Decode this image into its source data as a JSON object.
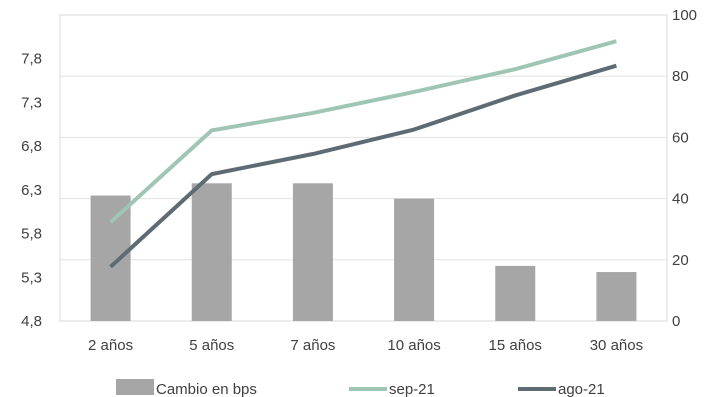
{
  "chart_data": {
    "type": "bar",
    "title": "",
    "xlabel": "",
    "ylabel": "",
    "categories": [
      "2 años",
      "5 años",
      "7 años",
      "10 años",
      "15 años",
      "30 años"
    ],
    "left_axis": {
      "ticks": [
        "4,8",
        "5,3",
        "5,8",
        "6,3",
        "6,8",
        "7,3",
        "7,8"
      ],
      "ylim": [
        4.8,
        8.3
      ]
    },
    "right_axis": {
      "ticks": [
        "0",
        "20",
        "40",
        "60",
        "80",
        "100"
      ],
      "ylim": [
        0,
        100
      ]
    },
    "series": [
      {
        "name": "Cambio en bps",
        "type": "bar",
        "axis": "right",
        "color": "#a6a6a6",
        "values": [
          41,
          45,
          45,
          40,
          18,
          16
        ]
      },
      {
        "name": "sep-21",
        "type": "line",
        "axis": "left",
        "color": "#9fc5b4",
        "values": [
          5.93,
          6.98,
          7.18,
          7.42,
          7.68,
          8.0
        ]
      },
      {
        "name": "ago-21",
        "type": "line",
        "axis": "left",
        "color": "#5f6b73",
        "values": [
          5.42,
          6.48,
          6.71,
          6.99,
          7.38,
          7.72
        ]
      }
    ],
    "grid": "horizontal",
    "legend_position": "bottom"
  }
}
